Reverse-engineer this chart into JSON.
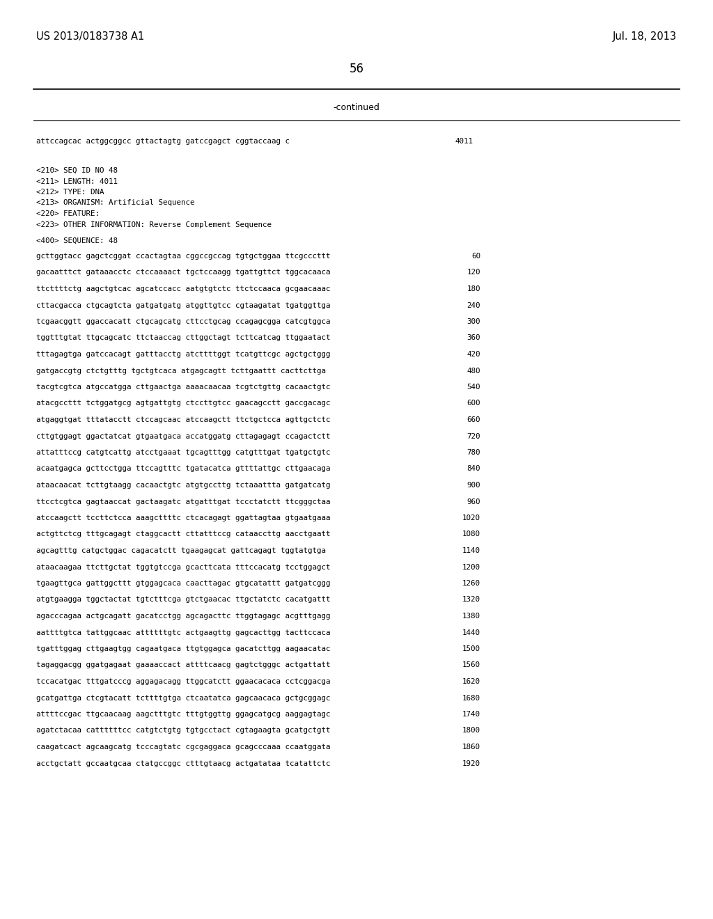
{
  "header_left": "US 2013/0183738 A1",
  "header_right": "Jul. 18, 2013",
  "page_number": "56",
  "continued_label": "-continued",
  "background_color": "#ffffff",
  "text_color": "#000000",
  "continuation_seq": "attccagcac actggcggcc gttactagtg gatccgagct cggtaccaag c",
  "continuation_num": "4011",
  "metadata_lines": [
    "<210> SEQ ID NO 48",
    "<211> LENGTH: 4011",
    "<212> TYPE: DNA",
    "<213> ORGANISM: Artificial Sequence",
    "<220> FEATURE:",
    "<223> OTHER INFORMATION: Reverse Complement Sequence"
  ],
  "sequence_header": "<400> SEQUENCE: 48",
  "sequence_data": [
    {
      "seq": "gcttggtacc gagctcggat ccactagtaa cggccgccag tgtgctggaa ttcgcccttt",
      "num": "60"
    },
    {
      "seq": "gacaatttct gataaacctc ctccaaaact tgctccaagg tgattgttct tggcacaaca",
      "num": "120"
    },
    {
      "seq": "ttcttttctg aagctgtcac agcatccacc aatgtgtctc ttctccaaca gcgaacaaac",
      "num": "180"
    },
    {
      "seq": "cttacgacca ctgcagtcta gatgatgatg atggttgtcc cgtaagatat tgatggttga",
      "num": "240"
    },
    {
      "seq": "tcgaacggtt ggaccacatt ctgcagcatg cttcctgcag ccagagcgga catcgtggca",
      "num": "300"
    },
    {
      "seq": "tggtttgtat ttgcagcatc ttctaaccag cttggctagt tcttcatcag ttggaatact",
      "num": "360"
    },
    {
      "seq": "tttagagtga gatccacagt gatttacctg atcttttggt tcatgttcgc agctgctggg",
      "num": "420"
    },
    {
      "seq": "gatgaccgtg ctctgtttg tgctgtcaca atgagcagtt tcttgaattt cacttcttga",
      "num": "480"
    },
    {
      "seq": "tacgtcgtca atgccatgga cttgaactga aaaacaacaa tcgtctgttg cacaactgtc",
      "num": "540"
    },
    {
      "seq": "atacgccttt tctggatgcg agtgattgtg ctccttgtcc gaacagcctt gaccgacagc",
      "num": "600"
    },
    {
      "seq": "atgaggtgat tttatacctt ctccagcaac atccaagctt ttctgctcca agttgctctc",
      "num": "660"
    },
    {
      "seq": "cttgtggagt ggactatcat gtgaatgaca accatggatg cttagagagt ccagactctt",
      "num": "720"
    },
    {
      "seq": "attatttccg catgtcattg atcctgaaat tgcagtttgg catgtttgat tgatgctgtc",
      "num": "780"
    },
    {
      "seq": "acaatgagca gcttcctgga ttccagtttc tgatacatca gttttattgc cttgaacaga",
      "num": "840"
    },
    {
      "seq": "ataacaacat tcttgtaagg cacaactgtc atgtgccttg tctaaattta gatgatcatg",
      "num": "900"
    },
    {
      "seq": "ttcctcgtca gagtaaccat gactaagatc atgatttgat tccctatctt ttcgggctaa",
      "num": "960"
    },
    {
      "seq": "atccaagctt tccttctcca aaagcttttc ctcacagagt ggattagtaa gtgaatgaaa",
      "num": "1020"
    },
    {
      "seq": "actgttctcg tttgcagagt ctaggcactt cttatttccg cataaccttg aacctgaatt",
      "num": "1080"
    },
    {
      "seq": "agcagtttg catgctggac cagacatctt tgaagagcat gattcagagt tggtatgtga",
      "num": "1140"
    },
    {
      "seq": "ataacaagaa ttcttgctat tggtgtccga gcacttcata tttccacatg tcctggagct",
      "num": "1200"
    },
    {
      "seq": "tgaagttgca gattggcttt gtggagcaca caacttagac gtgcatattt gatgatcggg",
      "num": "1260"
    },
    {
      "seq": "atgtgaagga tggctactat tgtctttcga gtctgaacac ttgctatctc cacatgattt",
      "num": "1320"
    },
    {
      "seq": "agacccagaa actgcagatt gacatcctgg agcagacttc ttggtagagc acgtttgagg",
      "num": "1380"
    },
    {
      "seq": "aattttgtca tattggcaac attttttgtc actgaagttg gagcacttgg tacttccaca",
      "num": "1440"
    },
    {
      "seq": "tgatttggag cttgaagtgg cagaatgaca ttgtggagca gacatcttgg aagaacatac",
      "num": "1500"
    },
    {
      "seq": "tagaggacgg ggatgagaat gaaaaccact attttcaacg gagtctgggc actgattatt",
      "num": "1560"
    },
    {
      "seq": "tccacatgac tttgatcccg aggagacagg ttggcatctt ggaacacaca cctcggacga",
      "num": "1620"
    },
    {
      "seq": "gcatgattga ctcgtacatt tcttttgtga ctcaatatca gagcaacaca gctgcggagc",
      "num": "1680"
    },
    {
      "seq": "attttccgac ttgcaacaag aagctttgtc tttgtggttg ggagcatgcg aaggagtagc",
      "num": "1740"
    },
    {
      "seq": "agatctacaa cattttttcc catgtctgtg tgtgcctact cgtagaagta gcatgctgtt",
      "num": "1800"
    },
    {
      "seq": "caagatcact agcaagcatg tcccagtatc cgcgaggaca gcagcccaaa ccaatggata",
      "num": "1860"
    },
    {
      "seq": "acctgctatt gccaatgcaa ctatgccggc ctttgtaacg actgatataa tcatattctc",
      "num": "1920"
    }
  ]
}
